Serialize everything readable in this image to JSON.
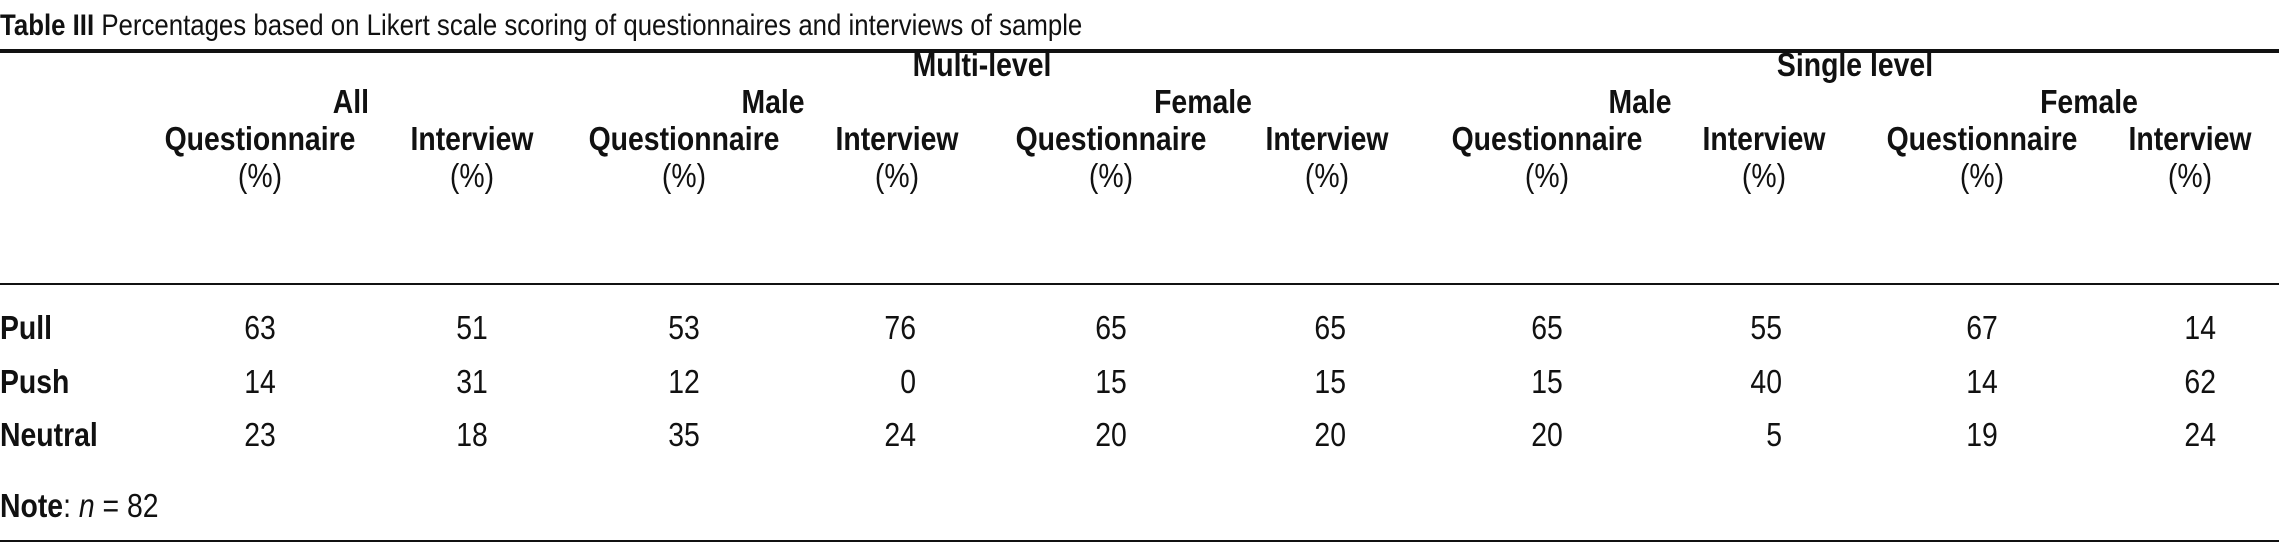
{
  "table": {
    "caption_label": "Table III",
    "caption_text": "Percentages based on Likert scale scoring of questionnaires and interviews of sample",
    "group_headers": {
      "multi": "Multi-level",
      "single": "Single level"
    },
    "sub_headers": {
      "all": "All",
      "multi_male": "Male",
      "multi_female": "Female",
      "single_male": "Male",
      "single_female": "Female"
    },
    "columns": [
      {
        "label": "Questionnaire",
        "unit": "(%)"
      },
      {
        "label": "Interview",
        "unit": "(%)"
      },
      {
        "label": "Questionnaire",
        "unit": "(%)"
      },
      {
        "label": "Interview",
        "unit": "(%)"
      },
      {
        "label": "Questionnaire",
        "unit": "(%)"
      },
      {
        "label": "Interview",
        "unit": "(%)"
      },
      {
        "label": "Questionnaire",
        "unit": "(%)"
      },
      {
        "label": "Interview",
        "unit": "(%)"
      },
      {
        "label": "Questionnaire",
        "unit": "(%)"
      },
      {
        "label": "Interview",
        "unit": "(%)"
      }
    ],
    "rows": [
      {
        "label": "Pull",
        "values": [
          "63",
          "51",
          "53",
          "76",
          "65",
          "65",
          "65",
          "55",
          "67",
          "14"
        ]
      },
      {
        "label": "Push",
        "values": [
          "14",
          "31",
          "12",
          "0",
          "15",
          "15",
          "15",
          "40",
          "14",
          "62"
        ]
      },
      {
        "label": "Neutral",
        "values": [
          "23",
          "18",
          "35",
          "24",
          "20",
          "20",
          "20",
          "5",
          "19",
          "24"
        ]
      }
    ],
    "note": {
      "label": "Note",
      "sep": ":",
      "var": "n",
      "eq": " = 82"
    }
  }
}
